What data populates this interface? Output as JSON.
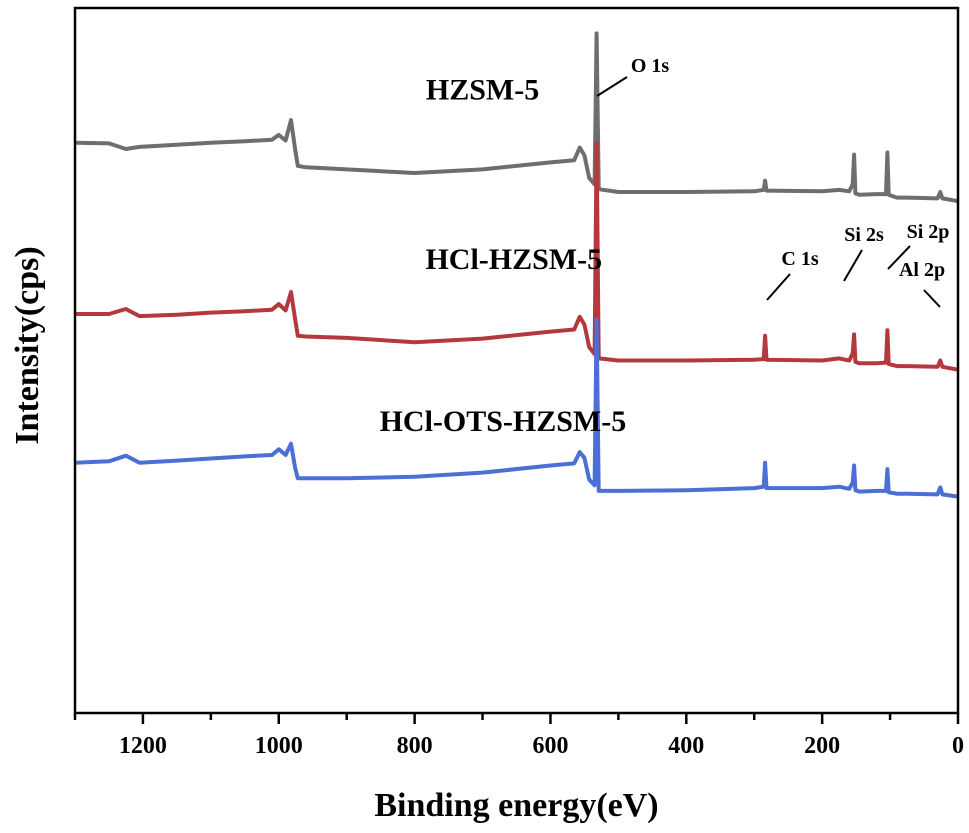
{
  "chart_data": {
    "type": "line",
    "title": "",
    "xlabel": "Binding energy(eV)",
    "ylabel": "Intensity(cps)",
    "xlim": [
      1300,
      0
    ],
    "x_reversed": true,
    "ylim": [
      0,
      100
    ],
    "y_ticks_shown": false,
    "grid": false,
    "legend": "none",
    "x_ticks": [
      1200,
      1000,
      800,
      600,
      400,
      200,
      0
    ],
    "series": [
      {
        "name": "HZSM-5",
        "color": "#6e6e6e",
        "points": [
          [
            1300,
            80.9
          ],
          [
            1250,
            80.8
          ],
          [
            1225,
            80.0
          ],
          [
            1205,
            80.3
          ],
          [
            1150,
            80.6
          ],
          [
            1100,
            80.9
          ],
          [
            1050,
            81.1
          ],
          [
            1010,
            81.3
          ],
          [
            1000,
            82.0
          ],
          [
            990,
            81.2
          ],
          [
            982,
            84.1
          ],
          [
            976,
            80.0
          ],
          [
            972,
            77.6
          ],
          [
            960,
            77.4
          ],
          [
            900,
            77.1
          ],
          [
            800,
            76.6
          ],
          [
            700,
            77.1
          ],
          [
            600,
            78.1
          ],
          [
            565,
            78.4
          ],
          [
            557,
            80.2
          ],
          [
            550,
            79.1
          ],
          [
            543,
            75.9
          ],
          [
            535,
            75.0
          ],
          [
            532,
            96.4
          ],
          [
            529,
            74.3
          ],
          [
            500,
            73.9
          ],
          [
            400,
            73.9
          ],
          [
            300,
            74.0
          ],
          [
            286,
            74.2
          ],
          [
            284,
            75.5
          ],
          [
            282,
            74.1
          ],
          [
            200,
            74.0
          ],
          [
            175,
            74.2
          ],
          [
            160,
            74.0
          ],
          [
            155,
            75.0
          ],
          [
            153,
            79.2
          ],
          [
            151,
            73.7
          ],
          [
            145,
            73.5
          ],
          [
            120,
            73.6
          ],
          [
            106,
            73.6
          ],
          [
            104,
            79.5
          ],
          [
            102,
            73.5
          ],
          [
            90,
            73.1
          ],
          [
            75,
            73.1
          ],
          [
            30,
            73.0
          ],
          [
            26,
            73.9
          ],
          [
            23,
            73.0
          ],
          [
            0,
            72.6
          ]
        ]
      },
      {
        "name": "HCl-HZSM-5",
        "color": "#b5383d",
        "points": [
          [
            1300,
            56.6
          ],
          [
            1250,
            56.6
          ],
          [
            1225,
            57.3
          ],
          [
            1205,
            56.3
          ],
          [
            1150,
            56.5
          ],
          [
            1100,
            56.8
          ],
          [
            1050,
            57.0
          ],
          [
            1010,
            57.2
          ],
          [
            1000,
            58.0
          ],
          [
            990,
            57.1
          ],
          [
            982,
            59.7
          ],
          [
            976,
            55.9
          ],
          [
            972,
            53.5
          ],
          [
            960,
            53.4
          ],
          [
            900,
            53.2
          ],
          [
            800,
            52.6
          ],
          [
            700,
            53.1
          ],
          [
            600,
            54.1
          ],
          [
            565,
            54.4
          ],
          [
            557,
            56.2
          ],
          [
            550,
            55.1
          ],
          [
            543,
            51.9
          ],
          [
            535,
            50.9
          ],
          [
            532,
            80.8
          ],
          [
            529,
            50.3
          ],
          [
            500,
            50.0
          ],
          [
            400,
            50.0
          ],
          [
            300,
            50.1
          ],
          [
            286,
            50.2
          ],
          [
            284,
            53.5
          ],
          [
            282,
            50.1
          ],
          [
            200,
            50.0
          ],
          [
            175,
            50.3
          ],
          [
            160,
            50.0
          ],
          [
            155,
            51.0
          ],
          [
            153,
            53.7
          ],
          [
            151,
            49.8
          ],
          [
            145,
            49.6
          ],
          [
            120,
            49.6
          ],
          [
            106,
            49.7
          ],
          [
            104,
            54.3
          ],
          [
            102,
            49.5
          ],
          [
            90,
            49.2
          ],
          [
            75,
            49.2
          ],
          [
            30,
            49.1
          ],
          [
            26,
            50.0
          ],
          [
            23,
            49.1
          ],
          [
            0,
            48.7
          ]
        ]
      },
      {
        "name": "HCl-OTS-HZSM-5",
        "color": "#4c6fd6",
        "points": [
          [
            1300,
            35.5
          ],
          [
            1250,
            35.7
          ],
          [
            1225,
            36.5
          ],
          [
            1205,
            35.5
          ],
          [
            1150,
            35.8
          ],
          [
            1100,
            36.1
          ],
          [
            1050,
            36.4
          ],
          [
            1010,
            36.6
          ],
          [
            1000,
            37.4
          ],
          [
            990,
            36.6
          ],
          [
            982,
            38.2
          ],
          [
            976,
            34.8
          ],
          [
            972,
            33.3
          ],
          [
            960,
            33.3
          ],
          [
            900,
            33.3
          ],
          [
            800,
            33.5
          ],
          [
            700,
            34.1
          ],
          [
            600,
            35.1
          ],
          [
            565,
            35.4
          ],
          [
            557,
            37.0
          ],
          [
            550,
            36.2
          ],
          [
            543,
            33.1
          ],
          [
            535,
            32.3
          ],
          [
            532,
            55.8
          ],
          [
            529,
            31.5
          ],
          [
            500,
            31.5
          ],
          [
            400,
            31.6
          ],
          [
            300,
            31.9
          ],
          [
            286,
            32.1
          ],
          [
            284,
            35.5
          ],
          [
            282,
            31.9
          ],
          [
            200,
            31.9
          ],
          [
            175,
            32.1
          ],
          [
            160,
            31.8
          ],
          [
            155,
            32.7
          ],
          [
            153,
            35.1
          ],
          [
            151,
            31.6
          ],
          [
            145,
            31.4
          ],
          [
            120,
            31.5
          ],
          [
            106,
            31.5
          ],
          [
            104,
            34.6
          ],
          [
            102,
            31.3
          ],
          [
            90,
            31.1
          ],
          [
            75,
            31.1
          ],
          [
            30,
            31.0
          ],
          [
            26,
            32.0
          ],
          [
            23,
            31.0
          ],
          [
            0,
            30.7
          ]
        ]
      }
    ],
    "annotations": [
      {
        "text": "O 1s",
        "x": 530,
        "y": 95
      },
      {
        "text": "C 1s",
        "x": 285,
        "y": 80
      },
      {
        "text": "Si 2s",
        "x": 153,
        "y": 80
      },
      {
        "text": "Si 2p",
        "x": 104,
        "y": 80
      },
      {
        "text": "Al 2p",
        "x": 26,
        "y": 80
      }
    ]
  }
}
